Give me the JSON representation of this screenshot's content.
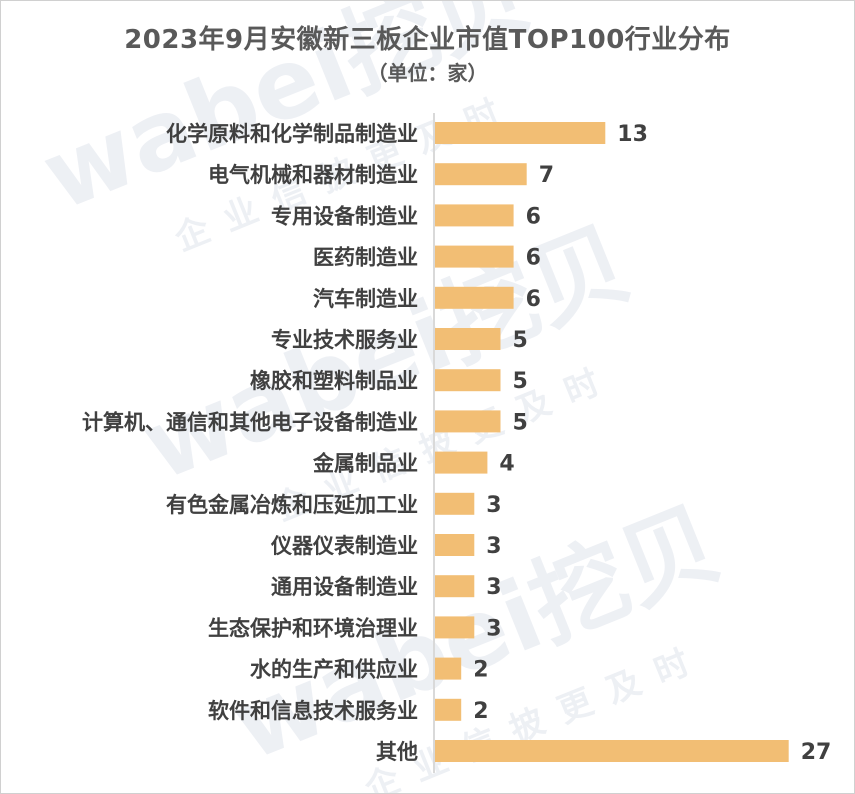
{
  "chart_data": {
    "type": "bar",
    "orientation": "horizontal",
    "title": "2023年9月安徽新三板企业市值TOP100行业分布",
    "subtitle": "（单位：家）",
    "xlabel": "",
    "ylabel": "",
    "categories": [
      "化学原料和化学制品制造业",
      "电气机械和器材制造业",
      "专用设备制造业",
      "医药制造业",
      "汽车制造业",
      "专业技术服务业",
      "橡胶和塑料制品业",
      "计算机、通信和其他电子设备制造业",
      "金属制品业",
      "有色金属冶炼和压延加工业",
      "仪器仪表制造业",
      "通用设备制造业",
      "生态保护和环境治理业",
      "水的生产和供应业",
      "软件和信息技术服务业",
      "其他"
    ],
    "values": [
      13,
      7,
      6,
      6,
      6,
      5,
      5,
      5,
      4,
      3,
      3,
      3,
      3,
      2,
      2,
      27
    ],
    "xlim": [
      0,
      28
    ],
    "bar_color": "#F2BE74",
    "axis_color": "#d9d9d9",
    "grid": false,
    "legend": "none",
    "data_labels": true
  },
  "watermark": {
    "brand": "wabei挖贝",
    "slogan": "企业信披更及时",
    "color": "#dfe3ec"
  }
}
